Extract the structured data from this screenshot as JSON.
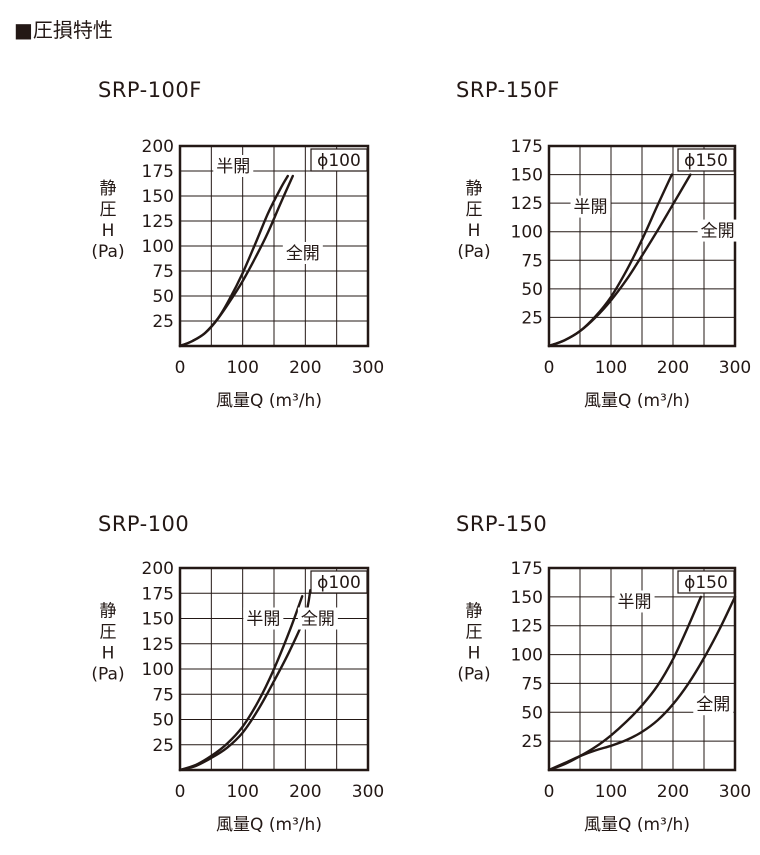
{
  "page_title": "■圧損特性",
  "chart_data": [
    {
      "type": "line",
      "model": "SRP-100F",
      "diameter_label": "ϕ100",
      "y_label_lines": [
        "静",
        "圧",
        "H",
        "(Pa)"
      ],
      "x_label": "風量Q (m³/h)",
      "x_ticks": [
        "0",
        "100",
        "200",
        "300"
      ],
      "y_ticks": [
        "25",
        "50",
        "75",
        "100",
        "125",
        "150",
        "175",
        "200"
      ],
      "xlim": [
        0,
        300
      ],
      "ylim": [
        0,
        200
      ],
      "x_grid_step": 50,
      "y_grid_step": 25,
      "series": [
        {
          "name": "半開",
          "x": [
            0,
            20,
            40,
            60,
            80,
            100,
            120,
            140,
            160,
            172
          ],
          "y": [
            0,
            5,
            13,
            27,
            48,
            73,
            102,
            132,
            157,
            170
          ]
        },
        {
          "name": "全開",
          "x": [
            0,
            20,
            40,
            60,
            80,
            100,
            120,
            140,
            160,
            180
          ],
          "y": [
            0,
            5,
            13,
            27,
            45,
            65,
            88,
            113,
            142,
            170
          ]
        }
      ],
      "label_positions": {
        "半開": [
          85,
          180
        ],
        "全開": [
          196,
          93
        ]
      }
    },
    {
      "type": "line",
      "model": "SRP-150F",
      "diameter_label": "ϕ150",
      "y_label_lines": [
        "静",
        "圧",
        "H",
        "(Pa)"
      ],
      "x_label": "風量Q (m³/h)",
      "x_ticks": [
        "0",
        "100",
        "200",
        "300"
      ],
      "y_ticks": [
        "25",
        "50",
        "75",
        "100",
        "125",
        "150",
        "175"
      ],
      "xlim": [
        0,
        300
      ],
      "ylim": [
        0,
        175
      ],
      "x_grid_step": 50,
      "y_grid_step": 25,
      "series": [
        {
          "name": "半開",
          "x": [
            0,
            25,
            50,
            75,
            100,
            125,
            150,
            175,
            198
          ],
          "y": [
            0,
            5,
            13,
            26,
            43,
            66,
            93,
            123,
            150
          ]
        },
        {
          "name": "全開",
          "x": [
            0,
            25,
            50,
            75,
            100,
            125,
            150,
            175,
            200,
            228
          ],
          "y": [
            0,
            5,
            13,
            25,
            40,
            58,
            79,
            101,
            124,
            150
          ]
        }
      ],
      "label_positions": {
        "半開": [
          67,
          122
        ],
        "全開": [
          272,
          101
        ]
      }
    },
    {
      "type": "line",
      "model": "SRP-100",
      "diameter_label": "ϕ100",
      "y_label_lines": [
        "静",
        "圧",
        "H",
        "(Pa)"
      ],
      "x_label": "風量Q (m³/h)",
      "x_ticks": [
        "0",
        "100",
        "200",
        "300"
      ],
      "y_ticks": [
        "25",
        "50",
        "75",
        "100",
        "125",
        "150",
        "175",
        "200"
      ],
      "xlim": [
        0,
        300
      ],
      "ylim": [
        0,
        200
      ],
      "x_grid_step": 50,
      "y_grid_step": 25,
      "series": [
        {
          "name": "半開",
          "x": [
            0,
            25,
            50,
            75,
            100,
            125,
            150,
            175,
            195
          ],
          "y": [
            0,
            5,
            14,
            26,
            43,
            68,
            100,
            138,
            172
          ]
        },
        {
          "name": "全開",
          "x": [
            0,
            25,
            50,
            75,
            100,
            125,
            150,
            175,
            200,
            208
          ],
          "y": [
            0,
            4,
            12,
            22,
            37,
            60,
            88,
            118,
            153,
            178
          ]
        }
      ],
      "label_positions": {
        "半開": [
          133,
          150
        ],
        "全開": [
          220,
          150
        ]
      }
    },
    {
      "type": "line",
      "model": "SRP-150",
      "diameter_label": "ϕ150",
      "y_label_lines": [
        "静",
        "圧",
        "H",
        "(Pa)"
      ],
      "x_label": "風量Q (m³/h)",
      "x_ticks": [
        "0",
        "100",
        "200",
        "300"
      ],
      "y_ticks": [
        "25",
        "50",
        "75",
        "100",
        "125",
        "150",
        "175"
      ],
      "xlim": [
        0,
        300
      ],
      "ylim": [
        0,
        175
      ],
      "x_grid_step": 50,
      "y_grid_step": 25,
      "series": [
        {
          "name": "半開",
          "x": [
            0,
            25,
            50,
            75,
            100,
            125,
            150,
            175,
            200,
            225,
            245
          ],
          "y": [
            0,
            5,
            12,
            20,
            30,
            42,
            56,
            73,
            96,
            125,
            150
          ]
        },
        {
          "name": "全開",
          "x": [
            0,
            25,
            50,
            75,
            100,
            125,
            150,
            175,
            200,
            225,
            250,
            275,
            300
          ],
          "y": [
            0,
            6,
            12,
            17,
            21,
            26,
            33,
            43,
            57,
            75,
            97,
            122,
            150
          ]
        }
      ],
      "label_positions": {
        "半開": [
          138,
          146
        ],
        "全開": [
          265,
          57
        ]
      }
    }
  ]
}
